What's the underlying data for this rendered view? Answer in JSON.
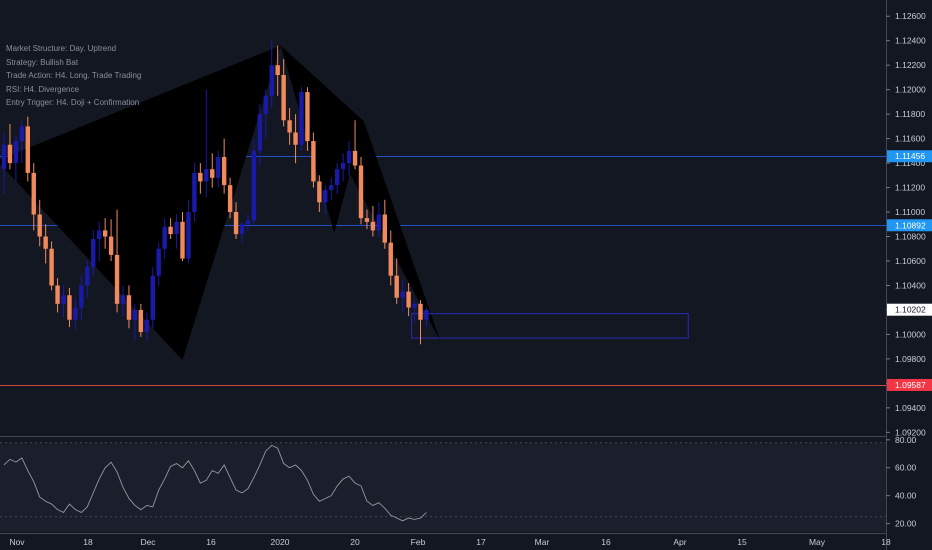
{
  "notes": [
    "Market Structure: Day. Uptrend",
    "Strategy: Bullish Bat",
    "Trade Action: H4. Long. Trade Trading",
    "RSI: H4. Divergence",
    "Entry Trigger: H4. Doji + Confirmation"
  ],
  "colors": {
    "background": "#131722",
    "bull_candle": "#1a1aa8",
    "bear_candle": "#f08a5d",
    "pattern_fill": "#000000",
    "blue_line": "#2962ff",
    "red_line": "#e74c3c",
    "rsi_line": "#9598a1"
  },
  "chart_data": {
    "type": "candlestick",
    "symbol_hint": "EURUSD daily",
    "y_ticks": [
      "1.12600",
      "1.12400",
      "1.12200",
      "1.12000",
      "1.11800",
      "1.11600",
      "1.11400",
      "1.11200",
      "1.11000",
      "1.10800",
      "1.10600",
      "1.10400",
      "1.10200",
      "1.10000",
      "1.09800",
      "1.09600",
      "1.09400",
      "1.09200"
    ],
    "ylim": [
      1.0917,
      1.127
    ],
    "x_labels": [
      "Nov",
      "18",
      "Dec",
      "16",
      "2020",
      "20",
      "Feb",
      "17",
      "Mar",
      "16",
      "Apr",
      "15",
      "May",
      "18"
    ],
    "price_tags": [
      {
        "label": "1.11456",
        "value": 1.11456,
        "style": "blue"
      },
      {
        "label": "1.10892",
        "value": 1.10892,
        "style": "blue"
      },
      {
        "label": "1.10202",
        "value": 1.10202,
        "style": "white"
      },
      {
        "label": "1.09587",
        "value": 1.09587,
        "style": "red"
      }
    ],
    "horizontal_lines": [
      {
        "value": 1.11456,
        "color": "blue"
      },
      {
        "value": 1.10892,
        "color": "blue"
      },
      {
        "value": 1.09587,
        "color": "red"
      }
    ],
    "candles": [
      [
        1.1135,
        1.1165,
        1.1115,
        1.1155
      ],
      [
        1.1155,
        1.1172,
        1.1135,
        1.114
      ],
      [
        1.114,
        1.1162,
        1.1125,
        1.1158
      ],
      [
        1.1158,
        1.1175,
        1.114,
        1.117
      ],
      [
        1.117,
        1.1178,
        1.1125,
        1.1132
      ],
      [
        1.1132,
        1.114,
        1.1085,
        1.1098
      ],
      [
        1.1098,
        1.111,
        1.1072,
        1.108
      ],
      [
        1.108,
        1.109,
        1.1058,
        1.107
      ],
      [
        1.107,
        1.1076,
        1.1036,
        1.104
      ],
      [
        1.104,
        1.1046,
        1.1018,
        1.1025
      ],
      [
        1.1025,
        1.104,
        1.1014,
        1.1032
      ],
      [
        1.1032,
        1.1038,
        1.1006,
        1.1012
      ],
      [
        1.1012,
        1.103,
        1.1004,
        1.1022
      ],
      [
        1.1022,
        1.1048,
        1.1012,
        1.104
      ],
      [
        1.104,
        1.106,
        1.103,
        1.1055
      ],
      [
        1.1055,
        1.1085,
        1.1048,
        1.1078
      ],
      [
        1.1078,
        1.1092,
        1.106,
        1.1085
      ],
      [
        1.1085,
        1.1095,
        1.107,
        1.108
      ],
      [
        1.108,
        1.1094,
        1.106,
        1.1065
      ],
      [
        1.1065,
        1.1102,
        1.1018,
        1.1025
      ],
      [
        1.1025,
        1.104,
        1.1015,
        1.1032
      ],
      [
        1.1032,
        1.104,
        1.1005,
        1.1012
      ],
      [
        1.1012,
        1.1025,
        1.0995,
        1.102
      ],
      [
        1.102,
        1.1025,
        1.0998,
        1.1002
      ],
      [
        1.1002,
        1.1018,
        1.0994,
        1.1012
      ],
      [
        1.1012,
        1.1055,
        1.1005,
        1.1048
      ],
      [
        1.1048,
        1.1075,
        1.104,
        1.107
      ],
      [
        1.107,
        1.1095,
        1.1062,
        1.1088
      ],
      [
        1.1088,
        1.1095,
        1.1078,
        1.1082
      ],
      [
        1.1082,
        1.1098,
        1.107,
        1.1092
      ],
      [
        1.1092,
        1.11,
        1.106,
        1.1062
      ],
      [
        1.1062,
        1.111,
        1.1058,
        1.11
      ],
      [
        1.11,
        1.114,
        1.1092,
        1.1132
      ],
      [
        1.1132,
        1.114,
        1.1115,
        1.1125
      ],
      [
        1.1125,
        1.12,
        1.1112,
        1.1135
      ],
      [
        1.1135,
        1.1148,
        1.112,
        1.1128
      ],
      [
        1.1128,
        1.115,
        1.112,
        1.1145
      ],
      [
        1.1145,
        1.116,
        1.1115,
        1.1122
      ],
      [
        1.1122,
        1.1128,
        1.1095,
        1.11
      ],
      [
        1.11,
        1.1108,
        1.1078,
        1.1082
      ],
      [
        1.1082,
        1.1092,
        1.1075,
        1.109
      ],
      [
        1.109,
        1.1098,
        1.1085,
        1.1093
      ],
      [
        1.1093,
        1.116,
        1.109,
        1.115
      ],
      [
        1.115,
        1.1188,
        1.1138,
        1.118
      ],
      [
        1.118,
        1.12,
        1.116,
        1.1195
      ],
      [
        1.1195,
        1.124,
        1.1185,
        1.122
      ],
      [
        1.122,
        1.1236,
        1.1195,
        1.1212
      ],
      [
        1.1212,
        1.1225,
        1.117,
        1.1175
      ],
      [
        1.1175,
        1.1185,
        1.1155,
        1.1165
      ],
      [
        1.1165,
        1.118,
        1.114,
        1.1155
      ],
      [
        1.1155,
        1.1202,
        1.115,
        1.1198
      ],
      [
        1.1198,
        1.1202,
        1.115,
        1.1158
      ],
      [
        1.1158,
        1.1165,
        1.112,
        1.1125
      ],
      [
        1.1125,
        1.113,
        1.11,
        1.1108
      ],
      [
        1.1108,
        1.1122,
        1.1098,
        1.1118
      ],
      [
        1.1118,
        1.1128,
        1.111,
        1.1122
      ],
      [
        1.1122,
        1.114,
        1.1115,
        1.1135
      ],
      [
        1.1135,
        1.1148,
        1.1125,
        1.114
      ],
      [
        1.114,
        1.1158,
        1.113,
        1.115
      ],
      [
        1.115,
        1.1175,
        1.1135,
        1.1138
      ],
      [
        1.1138,
        1.1145,
        1.109,
        1.1095
      ],
      [
        1.1095,
        1.1102,
        1.1086,
        1.1092
      ],
      [
        1.1092,
        1.1105,
        1.108,
        1.1085
      ],
      [
        1.1085,
        1.1108,
        1.108,
        1.1098
      ],
      [
        1.1098,
        1.111,
        1.107,
        1.1075
      ],
      [
        1.1075,
        1.1085,
        1.104,
        1.1048
      ],
      [
        1.1048,
        1.1062,
        1.1025,
        1.103
      ],
      [
        1.103,
        1.1045,
        1.1018,
        1.1035
      ],
      [
        1.1035,
        1.1042,
        1.1015,
        1.1022
      ],
      [
        1.1022,
        1.1028,
        1.101,
        1.1025
      ],
      [
        1.1025,
        1.1028,
        1.0992,
        1.1012
      ],
      [
        1.1012,
        1.1022,
        1.1006,
        1.102
      ]
    ],
    "bat_pattern": [
      {
        "bar": -1.2,
        "price": 1.1142
      },
      {
        "bar": 30,
        "price": 1.0979
      },
      {
        "bar": 46.5,
        "price": 1.1236
      },
      {
        "bar": 55.5,
        "price": 1.1083
      },
      {
        "bar": 60.5,
        "price": 1.1174
      },
      {
        "bar": 73.3,
        "price": 1.0995
      }
    ],
    "target_box": {
      "bar_from": 68.5,
      "bar_to": 115,
      "price_top": 1.1017,
      "price_bottom": 1.0997
    },
    "rsi": {
      "yticks": [
        "80.00",
        "60.00",
        "40.00",
        "20.00"
      ],
      "ylim": [
        14,
        82
      ],
      "values": [
        62,
        66,
        64,
        67,
        58,
        50,
        39,
        36,
        34,
        30,
        28,
        34,
        30,
        28,
        32,
        42,
        52,
        60,
        64,
        57,
        46,
        38,
        33,
        30,
        33,
        32,
        44,
        52,
        61,
        63,
        60,
        65,
        58,
        49,
        51,
        58,
        56,
        62,
        53,
        44,
        42,
        45,
        53,
        62,
        72,
        76,
        74,
        63,
        60,
        62,
        58,
        51,
        41,
        36,
        38,
        40,
        47,
        52,
        54,
        49,
        47,
        36,
        33,
        35,
        31,
        26,
        24,
        22,
        24,
        23,
        24,
        28
      ]
    }
  }
}
